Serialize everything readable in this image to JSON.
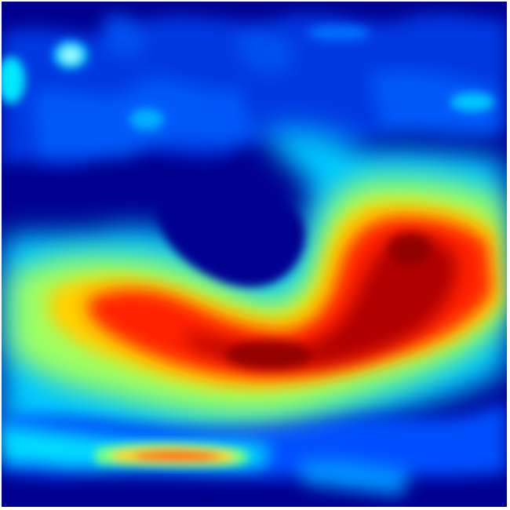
{
  "image": {
    "kind": "heatmap",
    "colormap": "jet",
    "colors": {
      "low": "#00008f",
      "mid_low": "#0050ff",
      "mid": "#00ffff",
      "mid_high": "#ffff00",
      "high": "#ff2000",
      "peak": "#8b0000"
    }
  }
}
